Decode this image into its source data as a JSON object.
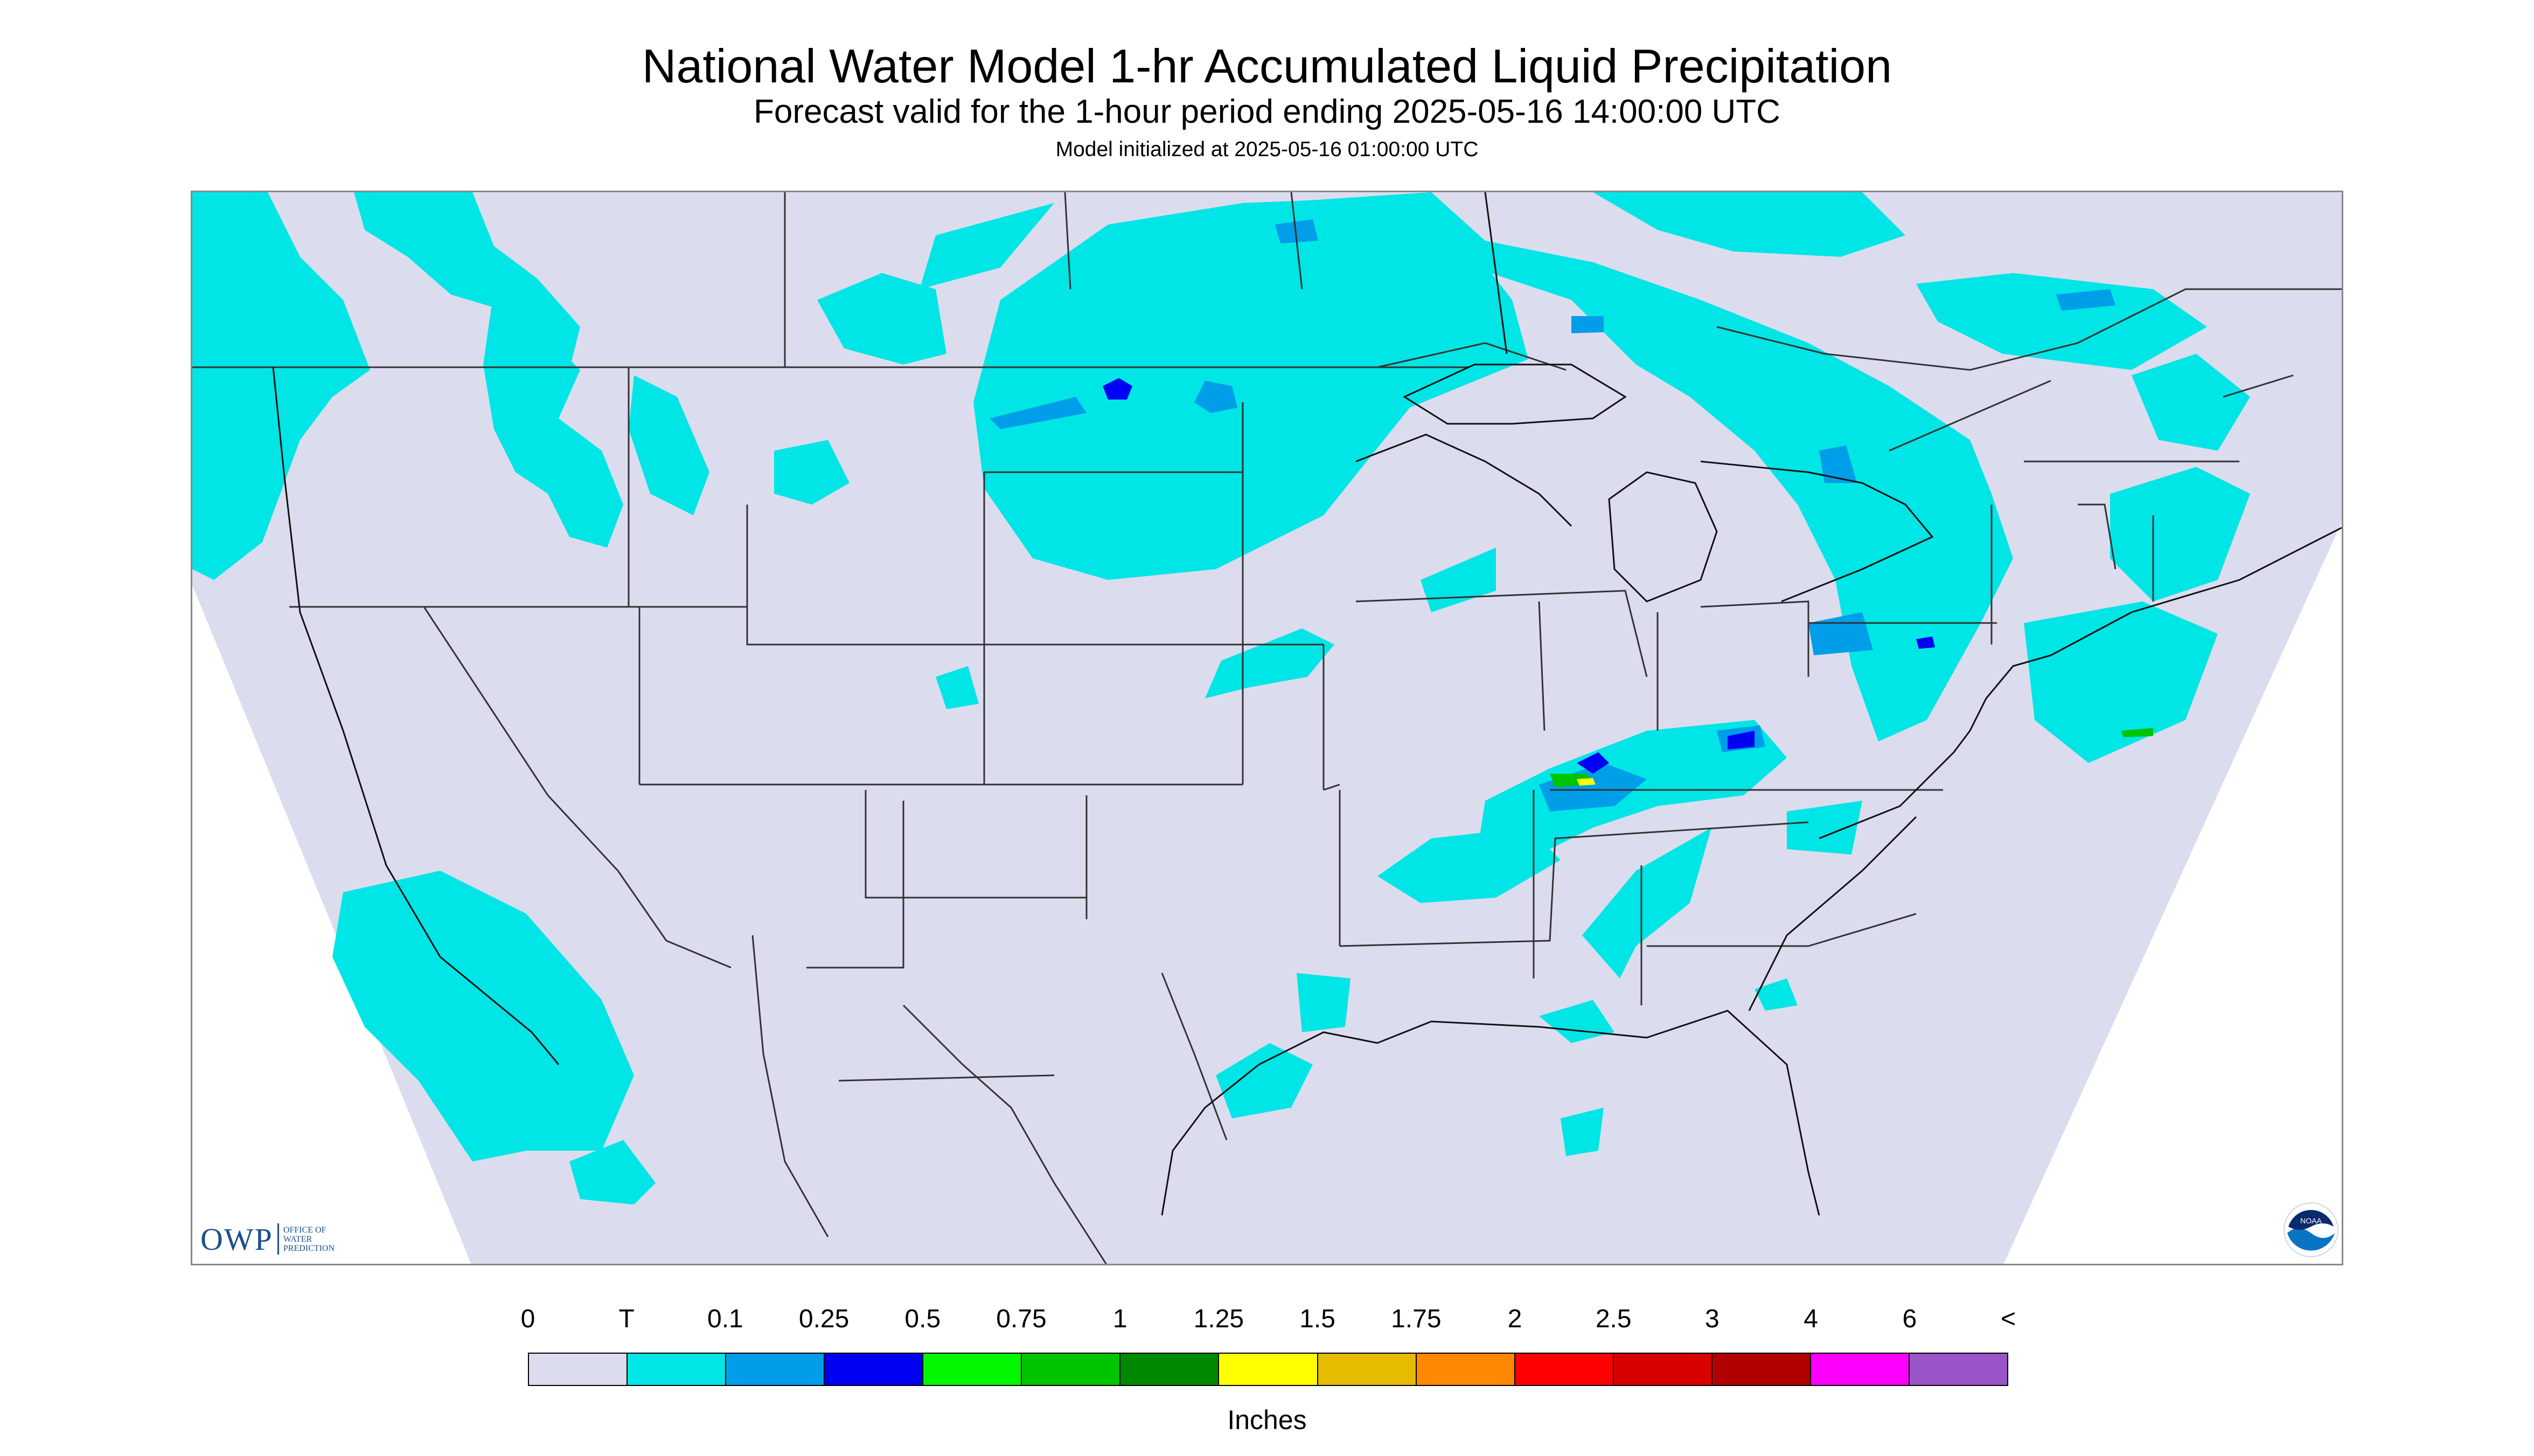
{
  "header": {
    "title": "National Water Model 1-hr Accumulated Liquid Precipitation",
    "subtitle": "Forecast valid for the 1-hour period ending 2025-05-16 14:00:00 UTC",
    "init_line": "Model initialized at 2025-05-16 01:00:00 UTC"
  },
  "legend": {
    "labels": [
      "0",
      "T",
      "0.1",
      "0.25",
      "0.5",
      "0.75",
      "1",
      "1.25",
      "1.5",
      "1.75",
      "2",
      "2.5",
      "3",
      "4",
      "6",
      "<"
    ],
    "colors": [
      "#dcdcef",
      "#00e5e5",
      "#009ee8",
      "#0000f2",
      "#00f700",
      "#00c400",
      "#008800",
      "#ffff00",
      "#e6bb00",
      "#ff8800",
      "#ff0000",
      "#d80000",
      "#b20000",
      "#ff00ff",
      "#9955c8"
    ],
    "units": "Inches"
  },
  "colors": {
    "no_precip": "#dcdcef",
    "trace": "#00e5e5",
    "light_blue": "#009ee8",
    "blue": "#0000f2",
    "border_line": "#333333"
  },
  "logos": {
    "owp_mark": "OWP",
    "owp_sub": [
      "OFFICE OF",
      "WATER",
      "PREDICTION"
    ],
    "noaa": "NOAA"
  }
}
